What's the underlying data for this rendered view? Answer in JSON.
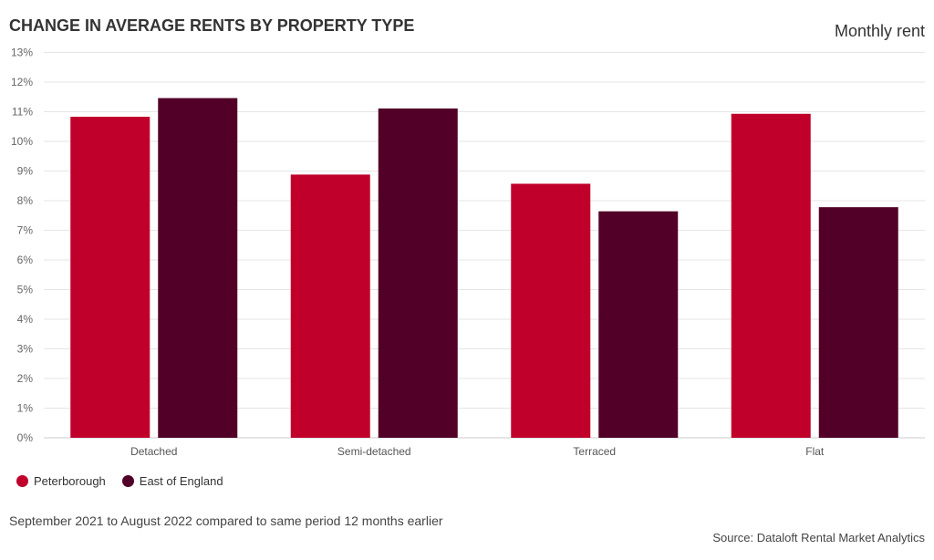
{
  "chart_data": {
    "type": "bar",
    "title": "CHANGE IN AVERAGE RENTS BY PROPERTY TYPE",
    "subtitle": "Monthly rent",
    "categories": [
      "Detached",
      "Semi-detached",
      "Terraced",
      "Flat"
    ],
    "series": [
      {
        "name": "Peterborough",
        "color": "#c0002b",
        "values": [
          10.83,
          8.88,
          8.57,
          10.93
        ]
      },
      {
        "name": "East of England",
        "color": "#520027",
        "values": [
          11.46,
          11.11,
          7.64,
          7.78
        ]
      }
    ],
    "ylim": [
      0,
      13
    ],
    "yticks": [
      0,
      1,
      2,
      3,
      4,
      5,
      6,
      7,
      8,
      9,
      10,
      11,
      12,
      13
    ],
    "ytick_suffix": "%",
    "xlabel": "",
    "ylabel": "",
    "grid": true,
    "legend_position": "bottom-left",
    "footnote": "September 2021 to August 2022 compared to same period 12 months earlier",
    "source": "Source: Dataloft Rental Market Analytics"
  }
}
